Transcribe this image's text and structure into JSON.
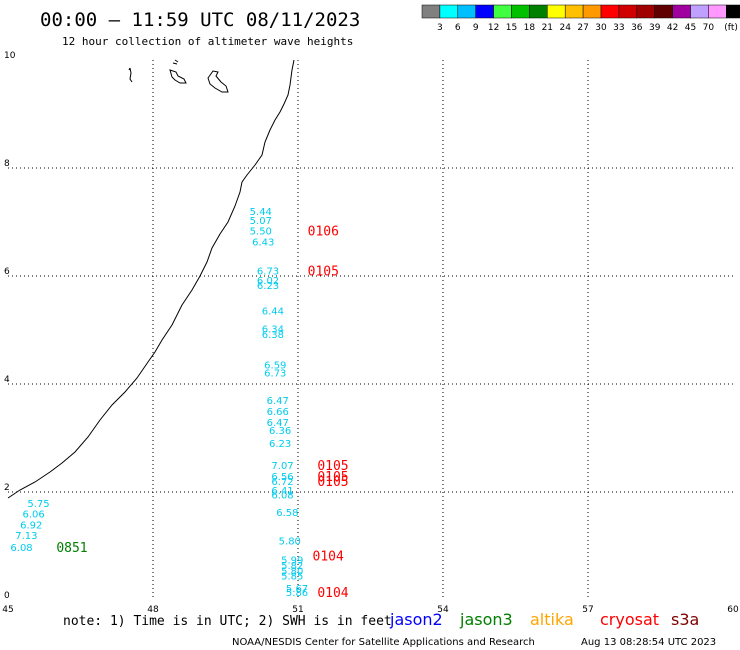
{
  "title": "00:00 – 11:59 UTC 08/11/2023",
  "subtitle": "12 hour collection of altimeter wave heights",
  "colorbar": {
    "colors": [
      "#808080",
      "#00ffff",
      "#00bfff",
      "#0000ff",
      "#40ff40",
      "#00c000",
      "#008000",
      "#ffff00",
      "#ffc000",
      "#ff9900",
      "#ff0000",
      "#d00000",
      "#a00000",
      "#600000",
      "#a000a0",
      "#c0a0ff",
      "#ff99ff",
      "#000000"
    ],
    "labels": [
      "3",
      "6",
      "9",
      "12",
      "15",
      "18",
      "21",
      "24",
      "27",
      "30",
      "33",
      "36",
      "39",
      "42",
      "45",
      "70",
      "(ft)"
    ]
  },
  "axes": {
    "x_ticks": [
      "45",
      "48",
      "51",
      "54",
      "57",
      "60"
    ],
    "y_ticks": [
      "0",
      "2",
      "4",
      "6",
      "8",
      "10"
    ],
    "grid": "dotted"
  },
  "observations": [
    {
      "v": "5.44",
      "lon": 50.0,
      "lat": 7.2
    },
    {
      "v": "5.07",
      "lon": 50.0,
      "lat": 7.04
    },
    {
      "v": "5.50",
      "lon": 50.0,
      "lat": 6.84
    },
    {
      "v": "6.43",
      "lon": 50.05,
      "lat": 6.64
    },
    {
      "v": "6.73",
      "lon": 50.15,
      "lat": 6.1
    },
    {
      "v": "6.02",
      "lon": 50.15,
      "lat": 5.93
    },
    {
      "v": "6.23",
      "lon": 50.15,
      "lat": 5.83
    },
    {
      "v": "6.44",
      "lon": 50.25,
      "lat": 5.36
    },
    {
      "v": "6.34",
      "lon": 50.25,
      "lat": 5.03
    },
    {
      "v": "6.38",
      "lon": 50.25,
      "lat": 4.93
    },
    {
      "v": "6.59",
      "lon": 50.3,
      "lat": 4.36
    },
    {
      "v": "6.73",
      "lon": 50.3,
      "lat": 4.21
    },
    {
      "v": "6.47",
      "lon": 50.35,
      "lat": 3.7
    },
    {
      "v": "6.66",
      "lon": 50.35,
      "lat": 3.5
    },
    {
      "v": "6.47",
      "lon": 50.35,
      "lat": 3.3
    },
    {
      "v": "6.36",
      "lon": 50.4,
      "lat": 3.15
    },
    {
      "v": "6.23",
      "lon": 50.4,
      "lat": 2.91
    },
    {
      "v": "7.07",
      "lon": 50.45,
      "lat": 2.5
    },
    {
      "v": "6.56",
      "lon": 50.45,
      "lat": 2.3
    },
    {
      "v": "6.72",
      "lon": 50.45,
      "lat": 2.2
    },
    {
      "v": "6.41",
      "lon": 50.45,
      "lat": 2.04
    },
    {
      "v": "6.08",
      "lon": 50.45,
      "lat": 1.95
    },
    {
      "v": "6.58",
      "lon": 50.55,
      "lat": 1.63
    },
    {
      "v": "5.80",
      "lon": 50.6,
      "lat": 1.1
    },
    {
      "v": "5.99",
      "lon": 50.65,
      "lat": 0.75
    },
    {
      "v": "5.82",
      "lon": 50.65,
      "lat": 0.65
    },
    {
      "v": "5.80",
      "lon": 50.65,
      "lat": 0.55
    },
    {
      "v": "5.85",
      "lon": 50.65,
      "lat": 0.45
    },
    {
      "v": "5.67",
      "lon": 50.75,
      "lat": 0.22
    },
    {
      "v": "5.86",
      "lon": 50.75,
      "lat": 0.15
    },
    {
      "v": "5.75",
      "lon": 45.4,
      "lat": 1.8
    },
    {
      "v": "6.06",
      "lon": 45.3,
      "lat": 1.6
    },
    {
      "v": "6.92",
      "lon": 45.25,
      "lat": 1.4
    },
    {
      "v": "7.13",
      "lon": 45.15,
      "lat": 1.2
    },
    {
      "v": "6.08",
      "lon": 45.05,
      "lat": 0.98
    }
  ],
  "passes": [
    {
      "id": "0106",
      "lon": 51.2,
      "lat": 6.84,
      "satellite": "cryosat"
    },
    {
      "id": "0105",
      "lon": 51.2,
      "lat": 6.1,
      "satellite": "cryosat"
    },
    {
      "id": "0105",
      "lon": 51.4,
      "lat": 2.5,
      "satellite": "cryosat"
    },
    {
      "id": "0105",
      "lon": 51.4,
      "lat": 2.3,
      "satellite": "cryosat"
    },
    {
      "id": "0105",
      "lon": 51.4,
      "lat": 2.2,
      "satellite": "cryosat"
    },
    {
      "id": "0104",
      "lon": 51.3,
      "lat": 0.82,
      "satellite": "cryosat"
    },
    {
      "id": "0104",
      "lon": 51.4,
      "lat": 0.15,
      "satellite": "cryosat"
    },
    {
      "id": "0851",
      "lon": 46.0,
      "lat": 0.98,
      "satellite": "jason3"
    }
  ],
  "satellite_colors": {
    "jason2": "#0000ff",
    "jason3": "#008000",
    "altika": "#ffa500",
    "cryosat": "#ff0000",
    "s3a": "#800000",
    "obs": "#00ccee"
  },
  "note": "note: 1) Time is in UTC; 2) SWH is in feet",
  "legend": [
    {
      "name": "jason2",
      "color": "#0000ff"
    },
    {
      "name": "jason3",
      "color": "#008000"
    },
    {
      "name": "altika",
      "color": "#ffa500"
    },
    {
      "name": "cryosat",
      "color": "#ff0000"
    },
    {
      "name": "s3a",
      "color": "#800000"
    }
  ],
  "footer": {
    "center": "NOAA/NESDIS Center for Satellite Applications and Research",
    "timestamp": "Aug 13 08:28:54 UTC 2023"
  }
}
